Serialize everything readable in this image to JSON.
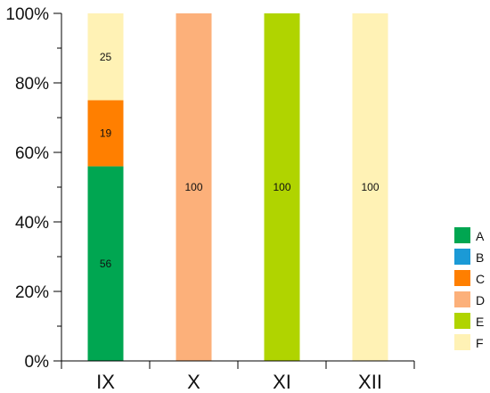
{
  "chart_data": {
    "type": "bar",
    "stacked": true,
    "percent": true,
    "categories": [
      "IX",
      "X",
      "XI",
      "XII"
    ],
    "series": [
      {
        "name": "A",
        "color": "#00a651",
        "values": [
          56,
          0,
          0,
          0
        ]
      },
      {
        "name": "B",
        "color": "#1b9ad6",
        "values": [
          0,
          0,
          0,
          0
        ]
      },
      {
        "name": "C",
        "color": "#ff7f00",
        "values": [
          19,
          0,
          0,
          0
        ]
      },
      {
        "name": "D",
        "color": "#fcb07a",
        "values": [
          0,
          100,
          0,
          0
        ]
      },
      {
        "name": "E",
        "color": "#b0d400",
        "values": [
          0,
          0,
          100,
          0
        ]
      },
      {
        "name": "F",
        "color": "#fff2b5",
        "values": [
          25,
          0,
          0,
          100
        ]
      }
    ],
    "yticks": [
      "0%",
      "20%",
      "40%",
      "60%",
      "80%",
      "100%"
    ],
    "ylim": [
      0,
      100
    ],
    "legend_position": "right",
    "grid": false
  }
}
